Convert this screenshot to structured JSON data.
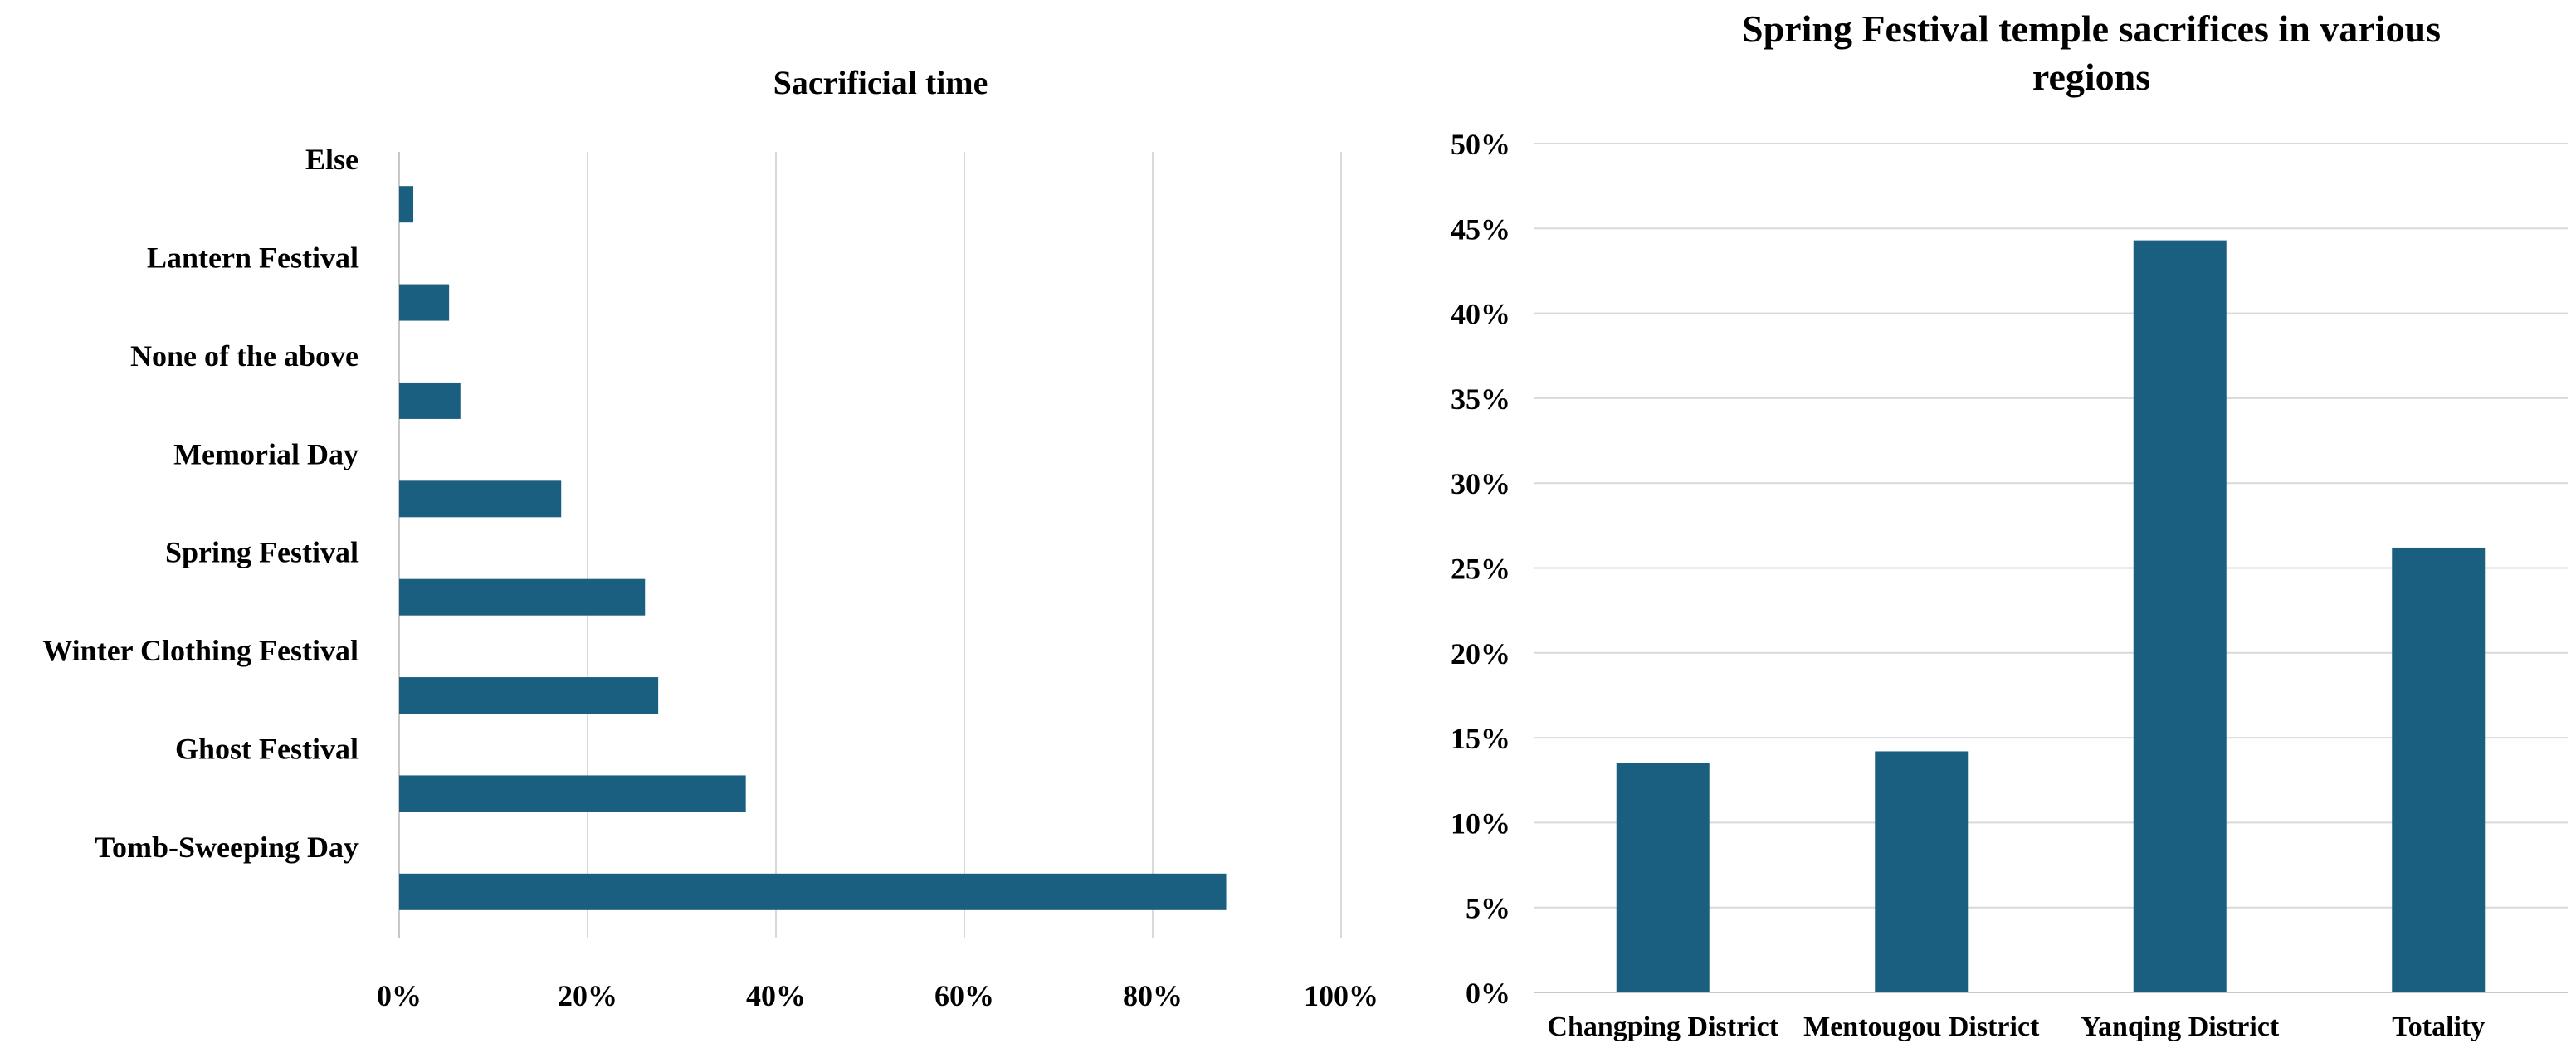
{
  "chart_data": [
    {
      "type": "bar",
      "orientation": "horizontal",
      "title": "Sacrificial time",
      "categories": [
        "Else",
        "Lantern Festival",
        "None of the above",
        "Memorial Day",
        "Spring Festival",
        "Winter Clothing Festival",
        "Ghost Festival",
        "Tomb-Sweeping Day"
      ],
      "values": [
        1.5,
        5.3,
        6.5,
        17.2,
        26.1,
        27.5,
        36.8,
        87.8
      ],
      "xlim": [
        0,
        100
      ],
      "ticks": [
        "0%",
        "20%",
        "40%",
        "60%",
        "80%",
        "100%"
      ],
      "tick_values": [
        0,
        20,
        40,
        60,
        80,
        100
      ],
      "grid": "vertical",
      "color": "#1a5e80"
    },
    {
      "type": "bar",
      "orientation": "vertical",
      "title": "Spring Festival temple sacrifices in various regions",
      "categories": [
        "Changping District",
        "Mentougou District",
        "Yanqing District",
        "Totality"
      ],
      "values": [
        13.5,
        14.2,
        44.3,
        26.2
      ],
      "ylim": [
        0,
        50
      ],
      "ticks": [
        "0%",
        "5%",
        "10%",
        "15%",
        "20%",
        "25%",
        "30%",
        "35%",
        "40%",
        "45%",
        "50%"
      ],
      "tick_values": [
        0,
        5,
        10,
        15,
        20,
        25,
        30,
        35,
        40,
        45,
        50
      ],
      "grid": "horizontal",
      "color": "#1a5e80"
    }
  ]
}
